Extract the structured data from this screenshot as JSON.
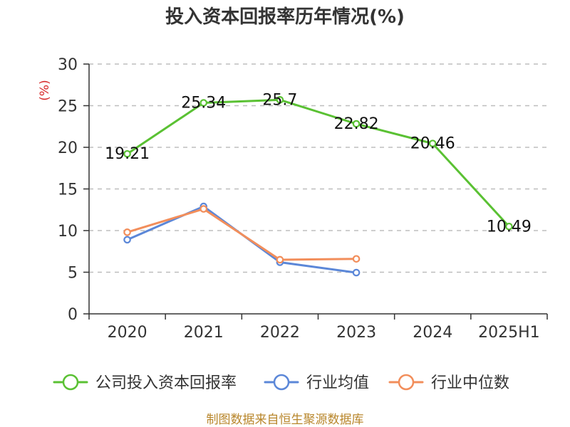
{
  "chart_data": {
    "type": "line",
    "title": "投入资本回报率历年情况(%)",
    "ylabel": "(%)",
    "xlabel": "",
    "categories": [
      "2020",
      "2021",
      "2022",
      "2023",
      "2024",
      "2025H1"
    ],
    "ylim": [
      0,
      30
    ],
    "yticks": [
      0,
      5,
      10,
      15,
      20,
      25,
      30
    ],
    "grid": true,
    "legend_position": "bottom",
    "series": [
      {
        "name": "公司投入资本回报率",
        "color": "#5ac133",
        "values": [
          19.21,
          25.34,
          25.7,
          22.82,
          20.46,
          10.49
        ],
        "labels": [
          "19.21",
          "25.34",
          "25.7",
          "22.82",
          "20.46",
          "10.49"
        ]
      },
      {
        "name": "行业均值",
        "color": "#5b87d8",
        "values": [
          8.9,
          12.9,
          6.2,
          4.95,
          null,
          null
        ],
        "labels": []
      },
      {
        "name": "行业中位数",
        "color": "#f28e5b",
        "values": [
          9.8,
          12.6,
          6.5,
          6.6,
          null,
          null
        ],
        "labels": []
      }
    ],
    "source": "制图数据来自恒生聚源数据库"
  }
}
